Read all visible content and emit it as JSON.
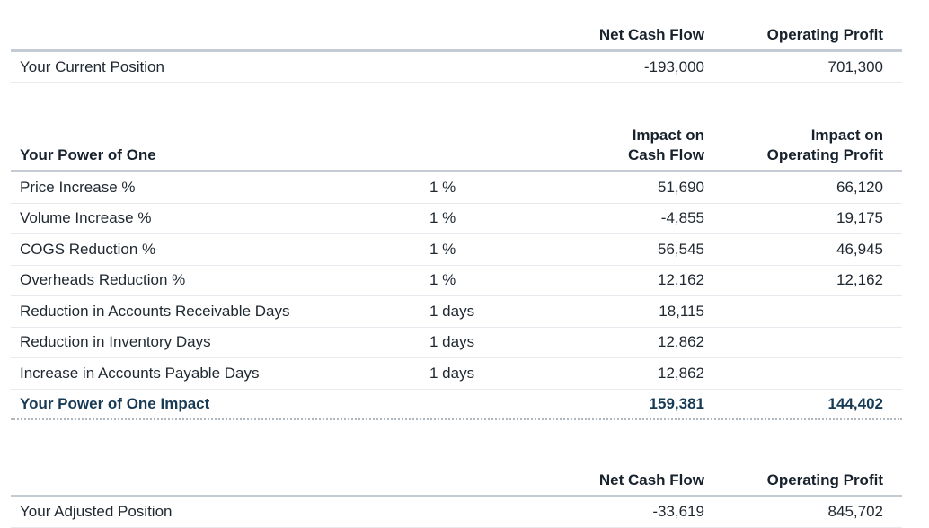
{
  "current": {
    "header_cash": "Net Cash Flow",
    "header_profit": "Operating Profit",
    "label": "Your Current Position",
    "cash": "-193,000",
    "profit": "701,300"
  },
  "power": {
    "header_label": "Your Power of One",
    "header_cash_line1": "Impact on",
    "header_cash_line2": "Cash Flow",
    "header_profit_line1": "Impact on",
    "header_profit_line2": "Operating Profit",
    "rows": [
      {
        "label": "Price Increase %",
        "input": "1 %",
        "cash": "51,690",
        "profit": "66,120"
      },
      {
        "label": "Volume Increase %",
        "input": "1 %",
        "cash": "-4,855",
        "profit": "19,175"
      },
      {
        "label": "COGS Reduction %",
        "input": "1 %",
        "cash": "56,545",
        "profit": "46,945"
      },
      {
        "label": "Overheads Reduction %",
        "input": "1 %",
        "cash": "12,162",
        "profit": "12,162"
      },
      {
        "label": "Reduction in Accounts Receivable Days",
        "input": "1 days",
        "cash": "18,115",
        "profit": ""
      },
      {
        "label": "Reduction in Inventory Days",
        "input": "1 days",
        "cash": "12,862",
        "profit": ""
      },
      {
        "label": "Increase in Accounts Payable Days",
        "input": "1 days",
        "cash": "12,862",
        "profit": ""
      }
    ],
    "total": {
      "label": "Your Power of One Impact",
      "cash": "159,381",
      "profit": "144,402"
    }
  },
  "adjusted": {
    "header_cash": "Net Cash Flow",
    "header_profit": "Operating Profit",
    "label": "Your Adjusted Position",
    "cash": "-33,619",
    "profit": "845,702"
  },
  "colors": {
    "text": "#1f2730",
    "accent": "#173a55",
    "rule": "#c4cbd2"
  }
}
